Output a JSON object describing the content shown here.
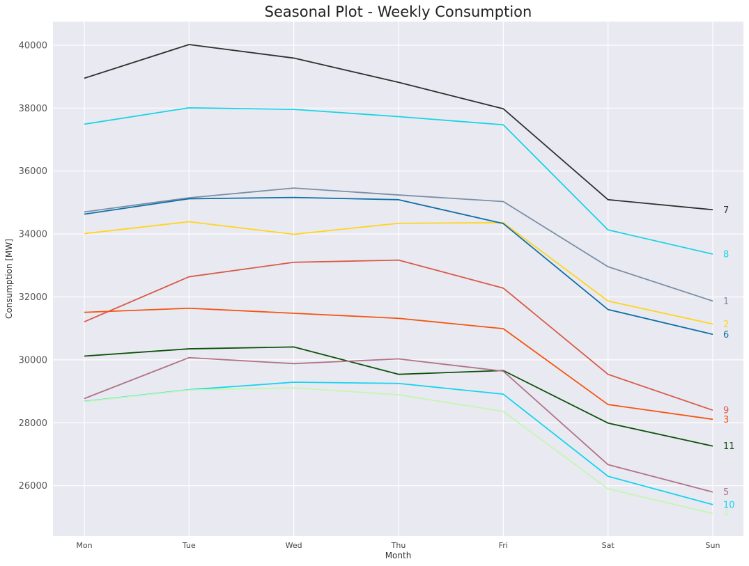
{
  "chart_data": {
    "type": "line",
    "title": "Seasonal Plot - Weekly Consumption",
    "xlabel": "Month",
    "ylabel": "Consumption [MW]",
    "categories": [
      "Mon",
      "Tue",
      "Wed",
      "Thu",
      "Fri",
      "Sat",
      "Sun"
    ],
    "ylim": [
      24400,
      40750
    ],
    "yticks": [
      26000,
      28000,
      30000,
      32000,
      34000,
      36000,
      38000,
      40000
    ],
    "grid": true,
    "background": "#e9e9f1",
    "series": [
      {
        "name": "7",
        "color": "#303030",
        "values": [
          38950,
          40020,
          39590,
          38820,
          37980,
          35090,
          34770
        ]
      },
      {
        "name": "8",
        "color": "#19d3e6",
        "values": [
          37490,
          38010,
          37960,
          37730,
          37470,
          34130,
          33360
        ]
      },
      {
        "name": "1",
        "color": "#7a8fa6",
        "values": [
          34700,
          35150,
          35460,
          35240,
          35030,
          32960,
          31870
        ]
      },
      {
        "name": "2",
        "color": "#ffd51c",
        "values": [
          34010,
          34390,
          33990,
          34340,
          34360,
          31870,
          31140
        ]
      },
      {
        "name": "6",
        "color": "#0c6fa6",
        "values": [
          34630,
          35120,
          35160,
          35090,
          34330,
          31600,
          30810
        ]
      },
      {
        "name": "9",
        "color": "#d85a48",
        "values": [
          31210,
          32640,
          33100,
          33170,
          32280,
          29540,
          28400
        ]
      },
      {
        "name": "3",
        "color": "#f5540f",
        "values": [
          31510,
          31640,
          31480,
          31320,
          30990,
          28580,
          28110
        ]
      },
      {
        "name": "11",
        "color": "#0b5209",
        "values": [
          30120,
          30350,
          30410,
          29540,
          29660,
          27990,
          27260
        ]
      },
      {
        "name": "5",
        "color": "#b07386",
        "values": [
          28770,
          30070,
          29880,
          30030,
          29640,
          26670,
          25800
        ]
      },
      {
        "name": "10",
        "color": "#14d4ef",
        "values": [
          28680,
          29050,
          29290,
          29250,
          28910,
          26300,
          25400
        ]
      },
      {
        "name": "4",
        "color": "#c3f7b1",
        "values": [
          28670,
          29040,
          29110,
          28890,
          28360,
          25900,
          25120
        ]
      }
    ]
  }
}
